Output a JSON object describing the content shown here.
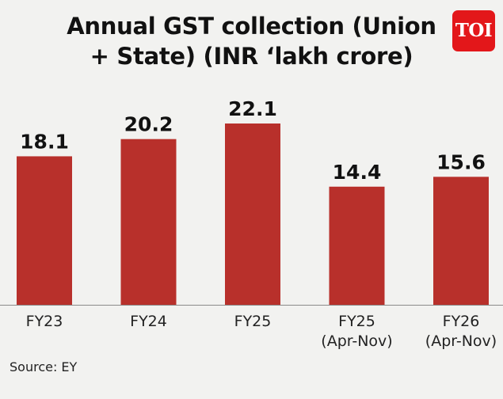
{
  "title_line1": "Annual GST collection (Union",
  "title_line2": "+ State) (INR ‘lakh crore)",
  "logo_text": "TOI",
  "source": "Source: EY",
  "chart_data": {
    "type": "bar",
    "title": "Annual GST collection (Union + State) (INR ‘lakh crore)",
    "categories": [
      [
        "FY23"
      ],
      [
        "FY24"
      ],
      [
        "FY25"
      ],
      [
        "FY25",
        "(Apr-Nov)"
      ],
      [
        "FY26",
        "(Apr-Nov)"
      ]
    ],
    "values": [
      18.1,
      20.2,
      22.1,
      14.4,
      15.6
    ],
    "value_labels": [
      "18.1",
      "20.2",
      "22.1",
      "14.4",
      "15.6"
    ],
    "bar_color": "#b8302b",
    "ylim": [
      0,
      22.1
    ],
    "grid": false,
    "xlabel": "",
    "ylabel": ""
  }
}
